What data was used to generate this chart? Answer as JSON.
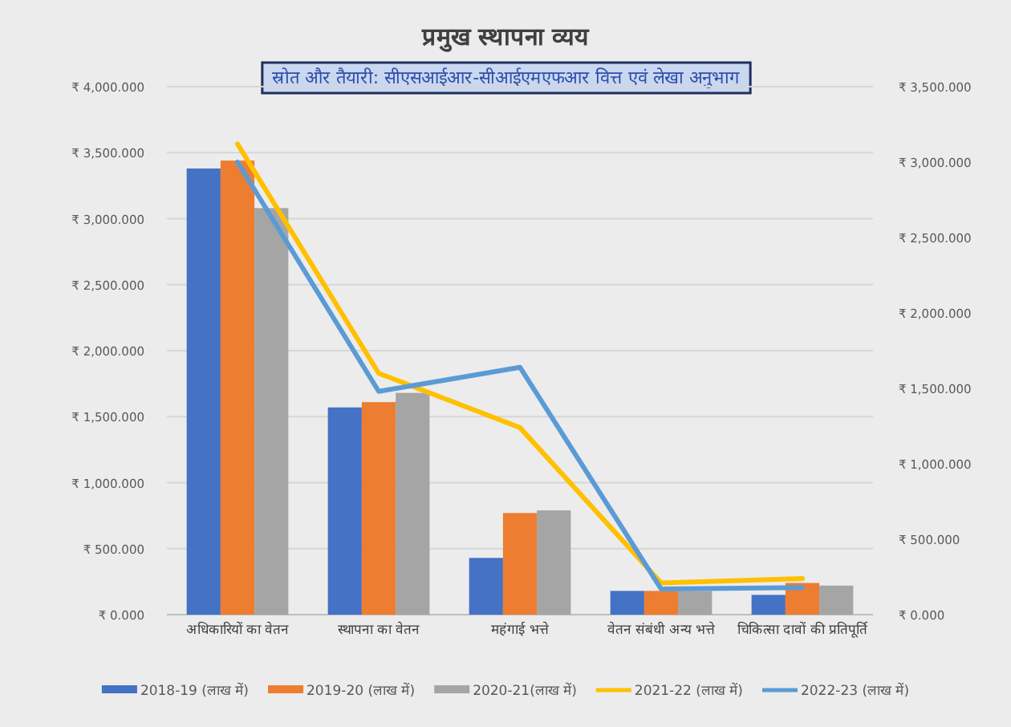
{
  "chart_data": {
    "type": "bar",
    "title": "प्रमुख स्थापना व्यय",
    "subtitle": "स्रोत और तैयारी: सीएसआईआर-सीआईएमएफआर वित्त एवं लेखा अनुभाग",
    "categories": [
      "अधिकारियों का वेतन",
      "स्थापना का वेतन",
      "महंगाई भत्ते",
      "वेतन संबंधी अन्य भत्ते",
      "चिकित्सा दावों की प्रतिपूर्ति"
    ],
    "series": [
      {
        "name": "2018-19 (लाख में)",
        "color": "#4472c4",
        "values": [
          3380,
          1570,
          430,
          180,
          150
        ]
      },
      {
        "name": "2019-20 (लाख में)",
        "color": "#ed7d31",
        "values": [
          3440,
          1610,
          770,
          180,
          240
        ]
      },
      {
        "name": "2020-21(लाख में)",
        "color": "#a5a5a5",
        "values": [
          3080,
          1680,
          790,
          180,
          220
        ]
      },
      {
        "name": "2021-22 (लाख में)",
        "color": "#ffc000",
        "type": "line",
        "axis": "y2",
        "values": [
          3120,
          1600,
          1240,
          210,
          240
        ]
      },
      {
        "name": "2022-23 (लाख में)",
        "color": "#5b9bd5",
        "type": "line",
        "axis": "y2",
        "values": [
          3000,
          1480,
          1640,
          170,
          180
        ]
      }
    ],
    "ylim": [
      0,
      4000
    ],
    "yticks": [
      {
        "value": 0,
        "label": "₹ 0.000"
      },
      {
        "value": 500,
        "label": "₹ 500.000"
      },
      {
        "value": 1000,
        "label": "₹ 1,000.000"
      },
      {
        "value": 1500,
        "label": "₹ 1,500.000"
      },
      {
        "value": 2000,
        "label": "₹ 2,000.000"
      },
      {
        "value": 2500,
        "label": "₹ 2,500.000"
      },
      {
        "value": 3000,
        "label": "₹ 3,000.000"
      },
      {
        "value": 3500,
        "label": "₹ 3,500.000"
      },
      {
        "value": 4000,
        "label": "₹ 4,000.000"
      }
    ],
    "y2lim": [
      0,
      3500
    ],
    "y2ticks": [
      {
        "value": 0,
        "label": "₹ 0.000"
      },
      {
        "value": 500,
        "label": "₹ 500.000"
      },
      {
        "value": 1000,
        "label": "₹ 1,000.000"
      },
      {
        "value": 1500,
        "label": "₹ 1,500.000"
      },
      {
        "value": 2000,
        "label": "₹ 2,000.000"
      },
      {
        "value": 2500,
        "label": "₹ 2,500.000"
      },
      {
        "value": 3000,
        "label": "₹ 3,000.000"
      },
      {
        "value": 3500,
        "label": "₹ 3,500.000"
      }
    ],
    "grid": "y",
    "legend": "bottom",
    "marker": "none",
    "line_style": "solid"
  }
}
